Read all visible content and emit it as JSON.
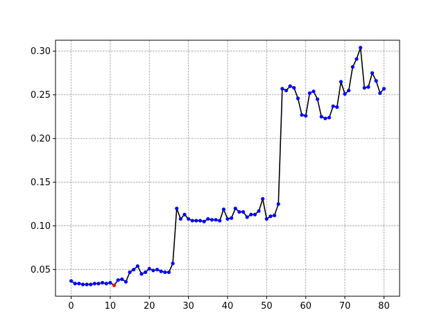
{
  "chart_data": {
    "type": "line",
    "title": "",
    "xlabel": "",
    "ylabel": "",
    "xlim": [
      -4,
      84
    ],
    "ylim": [
      0.0195,
      0.3125
    ],
    "x_ticks": [
      0,
      10,
      20,
      30,
      40,
      50,
      60,
      70,
      80
    ],
    "y_ticks": [
      0.05,
      0.1,
      0.15,
      0.2,
      0.25,
      0.3
    ],
    "grid": true,
    "legend": "none",
    "line_color": "#000000",
    "marker_color": "#0000ff",
    "highlight_color": "#ff0000",
    "highlight_index": 11,
    "x": [
      0,
      1,
      2,
      3,
      4,
      5,
      6,
      7,
      8,
      9,
      10,
      11,
      12,
      13,
      14,
      15,
      16,
      17,
      18,
      19,
      20,
      21,
      22,
      23,
      24,
      25,
      26,
      27,
      28,
      29,
      30,
      31,
      32,
      33,
      34,
      35,
      36,
      37,
      38,
      39,
      40,
      41,
      42,
      43,
      44,
      45,
      46,
      47,
      48,
      49,
      50,
      51,
      52,
      53,
      54,
      55,
      56,
      57,
      58,
      59,
      60,
      61,
      62,
      63,
      64,
      65,
      66,
      67,
      68,
      69,
      70,
      71,
      72,
      73,
      74,
      75,
      76,
      77,
      78,
      79,
      80
    ],
    "values": [
      0.037,
      0.034,
      0.034,
      0.033,
      0.033,
      0.033,
      0.034,
      0.034,
      0.035,
      0.034,
      0.035,
      0.032,
      0.038,
      0.039,
      0.036,
      0.047,
      0.05,
      0.054,
      0.045,
      0.047,
      0.051,
      0.049,
      0.05,
      0.048,
      0.047,
      0.047,
      0.057,
      0.12,
      0.108,
      0.113,
      0.108,
      0.106,
      0.106,
      0.106,
      0.105,
      0.108,
      0.107,
      0.107,
      0.106,
      0.119,
      0.108,
      0.109,
      0.12,
      0.116,
      0.116,
      0.11,
      0.113,
      0.113,
      0.117,
      0.131,
      0.108,
      0.111,
      0.112,
      0.125,
      0.257,
      0.255,
      0.26,
      0.258,
      0.246,
      0.227,
      0.226,
      0.252,
      0.254,
      0.245,
      0.225,
      0.223,
      0.224,
      0.237,
      0.236,
      0.265,
      0.251,
      0.255,
      0.282,
      0.291,
      0.304,
      0.258,
      0.259,
      0.275,
      0.266,
      0.252,
      0.257
    ]
  }
}
